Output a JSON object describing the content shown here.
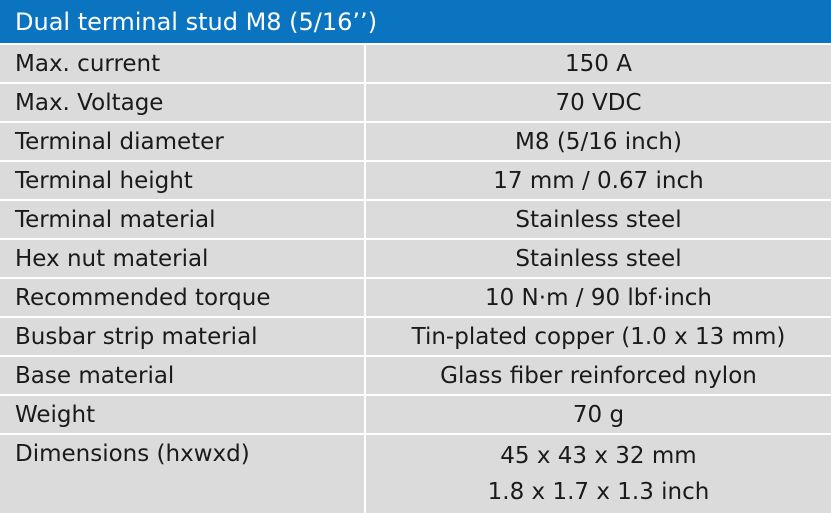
{
  "title": "Dual terminal stud M8 (5/16’’)",
  "rows": [
    {
      "label": "Max. current",
      "value": "150 A"
    },
    {
      "label": "Max. Voltage",
      "value": "70 VDC"
    },
    {
      "label": "Terminal diameter",
      "value": "M8 (5/16 inch)"
    },
    {
      "label": "Terminal height",
      "value": "17 mm / 0.67 inch"
    },
    {
      "label": "Terminal material",
      "value": "Stainless steel"
    },
    {
      "label": "Hex nut material",
      "value": "Stainless steel"
    },
    {
      "label": "Recommended torque",
      "value": "10 N·m / 90 lbf·inch"
    },
    {
      "label": "Busbar strip material",
      "value": "Tin-plated copper (1.0 x 13 mm)"
    },
    {
      "label": "Base material",
      "value": "Glass fiber reinforced nylon"
    },
    {
      "label": "Weight",
      "value": "70 g"
    },
    {
      "label": "Dimensions (hxwxd)",
      "value_lines": [
        "45 x 43 x 32 mm",
        "1.8 x 1.7 x 1.3 inch"
      ]
    }
  ],
  "colors": {
    "header_bg": "#0b74c0",
    "row_bg": "#dbdbdb",
    "text": "#1a1a1a"
  }
}
